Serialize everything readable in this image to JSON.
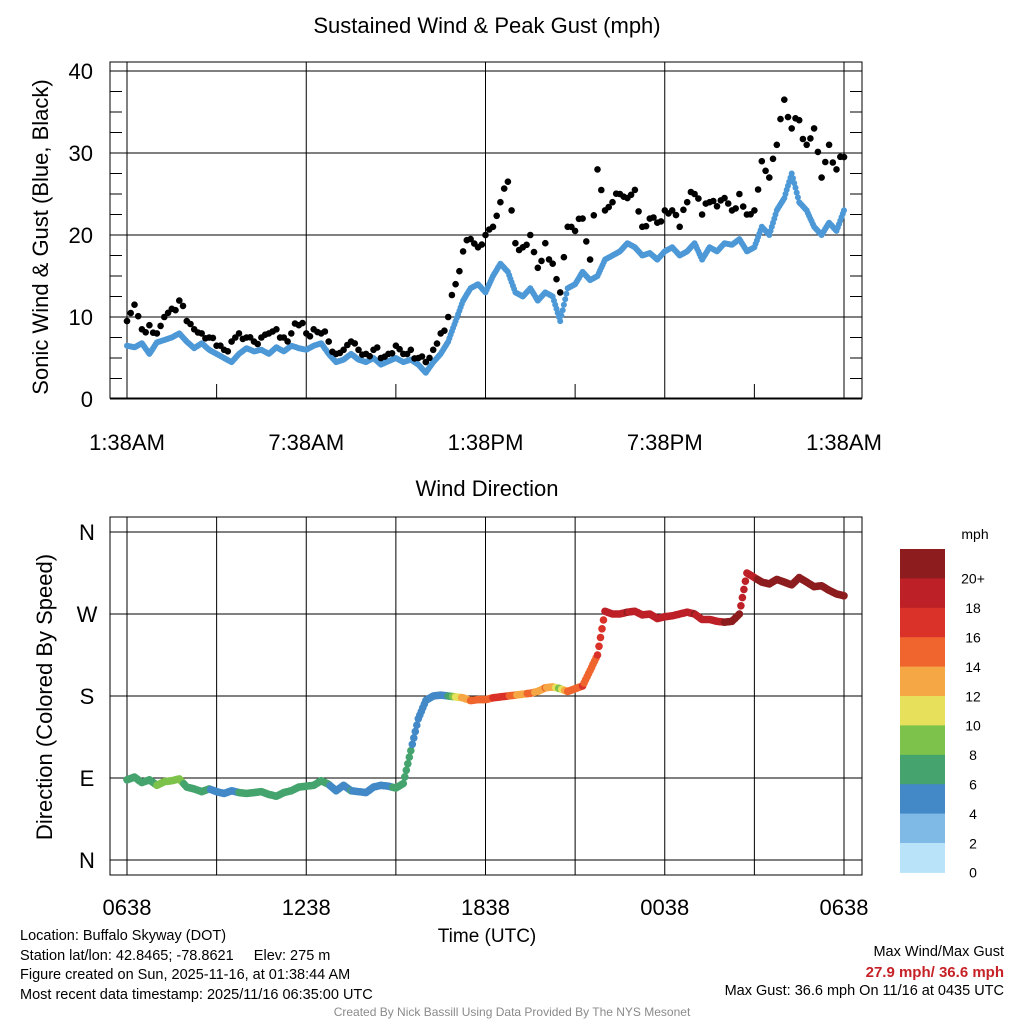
{
  "chart_data": [
    {
      "type": "scatter",
      "title": "Sustained Wind & Peak Gust (mph)",
      "ylabel": "Sonic Wind & Gust (Blue, Black)",
      "xlabel": "",
      "ylim": [
        0,
        40
      ],
      "yticks": [
        0,
        10,
        20,
        30,
        40
      ],
      "x_unit": "hours since 1:38AM",
      "xlim": [
        0,
        24
      ],
      "xtick_positions": [
        0,
        6,
        12,
        18,
        24
      ],
      "xtick_labels": [
        "1:38AM",
        "7:38AM",
        "1:38PM",
        "7:38PM",
        "1:38AM"
      ],
      "grid": true,
      "series": [
        {
          "name": "Sustained Wind",
          "color": "#4d98d6",
          "x": [
            0,
            0.25,
            0.5,
            0.75,
            1,
            1.25,
            1.5,
            1.75,
            2,
            2.25,
            2.5,
            2.75,
            3,
            3.25,
            3.5,
            3.75,
            4,
            4.25,
            4.5,
            4.75,
            5,
            5.25,
            5.5,
            5.75,
            6,
            6.25,
            6.5,
            6.75,
            7,
            7.25,
            7.5,
            7.75,
            8,
            8.25,
            8.5,
            8.75,
            9,
            9.25,
            9.5,
            9.75,
            10,
            10.25,
            10.5,
            10.75,
            11,
            11.25,
            11.5,
            11.75,
            12,
            12.25,
            12.5,
            12.75,
            13,
            13.25,
            13.5,
            13.75,
            14,
            14.25,
            14.5,
            14.75,
            15,
            15.25,
            15.5,
            15.75,
            16,
            16.25,
            16.5,
            16.75,
            17,
            17.25,
            17.5,
            17.75,
            18,
            18.25,
            18.5,
            18.75,
            19,
            19.25,
            19.5,
            19.75,
            20,
            20.25,
            20.5,
            20.75,
            21,
            21.25,
            21.5,
            21.75,
            22,
            22.25,
            22.5,
            22.75,
            23,
            23.25,
            23.5,
            23.75,
            24
          ],
          "values": [
            6.5,
            6.3,
            6.8,
            5.5,
            6.9,
            7.2,
            7.5,
            8.0,
            7.0,
            6.2,
            6.8,
            6.0,
            5.5,
            5.0,
            4.5,
            5.5,
            6.2,
            5.8,
            6.0,
            5.5,
            6.3,
            5.8,
            6.5,
            6.2,
            6.0,
            6.5,
            6.8,
            5.5,
            4.5,
            4.8,
            5.5,
            4.8,
            4.5,
            5.0,
            4.2,
            4.6,
            5.0,
            4.5,
            4.8,
            4.2,
            3.2,
            4.5,
            5.5,
            7.0,
            9.5,
            12.0,
            13.5,
            14.0,
            13.0,
            15.0,
            16.5,
            15.5,
            13.0,
            12.5,
            13.5,
            12.0,
            13.0,
            12.5,
            9.5,
            13.5,
            14.0,
            15.5,
            14.5,
            15.0,
            17.0,
            17.5,
            18.0,
            19.0,
            18.5,
            17.5,
            17.8,
            17.0,
            18.0,
            18.5,
            17.5,
            18.0,
            19.0,
            17.0,
            18.5,
            18.0,
            19.0,
            18.8,
            19.5,
            18.0,
            18.5,
            21.0,
            20.0,
            23.0,
            24.5,
            27.5,
            24.0,
            23.0,
            21.0,
            20.0,
            21.5,
            20.5,
            23.0
          ]
        },
        {
          "name": "Peak Gust",
          "color": "#000000",
          "x": [
            0,
            0.25,
            0.5,
            0.75,
            1,
            1.25,
            1.5,
            1.75,
            2,
            2.25,
            2.5,
            2.75,
            3,
            3.25,
            3.5,
            3.75,
            4,
            4.25,
            4.5,
            4.75,
            5,
            5.25,
            5.5,
            5.75,
            6,
            6.25,
            6.5,
            6.75,
            7,
            7.25,
            7.5,
            7.75,
            8,
            8.25,
            8.5,
            8.75,
            9,
            9.25,
            9.5,
            9.75,
            10,
            10.25,
            10.5,
            10.75,
            11,
            11.25,
            11.5,
            11.75,
            12,
            12.25,
            12.5,
            12.75,
            13,
            13.25,
            13.5,
            13.75,
            14,
            14.25,
            14.5,
            14.75,
            15,
            15.25,
            15.5,
            15.75,
            16,
            16.25,
            16.5,
            16.75,
            17,
            17.25,
            17.5,
            17.75,
            18,
            18.25,
            18.5,
            18.75,
            19,
            19.25,
            19.5,
            19.75,
            20,
            20.25,
            20.5,
            20.75,
            21,
            21.25,
            21.5,
            21.75,
            22,
            22.25,
            22.5,
            22.75,
            23,
            23.25,
            23.5,
            23.75,
            24
          ],
          "values": [
            9.5,
            11.5,
            8.5,
            9.0,
            8.0,
            10.0,
            11.0,
            12.0,
            9.5,
            8.5,
            8.0,
            7.5,
            6.5,
            6.0,
            7.0,
            8.0,
            7.5,
            7.0,
            7.5,
            8.0,
            8.5,
            7.5,
            8.0,
            9.0,
            8.0,
            8.5,
            8.0,
            7.0,
            5.5,
            6.0,
            7.0,
            6.0,
            5.5,
            6.0,
            5.0,
            5.5,
            6.5,
            5.5,
            6.0,
            5.0,
            4.5,
            6.0,
            8.0,
            10.0,
            14.0,
            18.0,
            19.5,
            18.5,
            20.0,
            21.0,
            24.0,
            26.5,
            19.0,
            18.5,
            20.0,
            16.0,
            19.0,
            16.5,
            13.0,
            21.0,
            20.5,
            22.0,
            17.0,
            28.0,
            23.0,
            24.0,
            25.0,
            24.5,
            25.5,
            21.0,
            22.0,
            21.5,
            23.0,
            23.0,
            21.0,
            24.0,
            25.0,
            22.5,
            24.0,
            23.5,
            24.5,
            23.0,
            25.0,
            22.5,
            23.0,
            29.0,
            27.0,
            31.0,
            36.5,
            33.0,
            34.0,
            31.0,
            33.0,
            27.0,
            31.0,
            28.0,
            29.5
          ]
        }
      ]
    },
    {
      "type": "scatter",
      "title": "Wind Direction",
      "ylabel": "Direction (Colored By Speed)",
      "xlabel": "Time (UTC)",
      "ylim": [
        0,
        360
      ],
      "ytick_values": [
        0,
        90,
        180,
        270,
        360
      ],
      "ytick_labels": [
        "N",
        "E",
        "S",
        "W",
        "N"
      ],
      "x_unit": "hours since 0638 UTC",
      "xlim": [
        0,
        24
      ],
      "xtick_positions": [
        0,
        6,
        12,
        18,
        24
      ],
      "xtick_labels": [
        "0638",
        "1238",
        "1838",
        "0038",
        "0638"
      ],
      "grid": true,
      "series": [
        {
          "name": "Direction",
          "x": [
            0,
            0.25,
            0.5,
            0.75,
            1,
            1.25,
            1.5,
            1.75,
            2,
            2.25,
            2.5,
            2.75,
            3,
            3.25,
            3.5,
            3.75,
            4,
            4.25,
            4.5,
            4.75,
            5,
            5.25,
            5.5,
            5.75,
            6,
            6.25,
            6.5,
            6.75,
            7,
            7.25,
            7.5,
            7.75,
            8,
            8.25,
            8.5,
            8.75,
            9,
            9.25,
            9.5,
            9.75,
            10,
            10.25,
            10.5,
            10.75,
            11,
            11.25,
            11.5,
            11.75,
            12,
            12.25,
            12.5,
            12.75,
            13,
            13.25,
            13.5,
            13.75,
            14,
            14.25,
            14.5,
            14.75,
            15,
            15.25,
            15.5,
            15.75,
            16,
            16.25,
            16.5,
            16.75,
            17,
            17.25,
            17.5,
            17.75,
            18,
            18.25,
            18.5,
            18.75,
            19,
            19.25,
            19.5,
            19.75,
            20,
            20.25,
            20.5,
            20.75,
            21,
            21.25,
            21.5,
            21.75,
            22,
            22.25,
            22.5,
            22.75,
            23,
            23.25,
            23.5,
            23.75,
            24
          ],
          "values": [
            88,
            91,
            85,
            88,
            82,
            86,
            87,
            89,
            80,
            78,
            75,
            78,
            75,
            73,
            76,
            74,
            73,
            74,
            75,
            72,
            70,
            74,
            76,
            80,
            81,
            82,
            87,
            83,
            76,
            82,
            76,
            75,
            74,
            80,
            82,
            81,
            79,
            84,
            120,
            155,
            175,
            180,
            181,
            180,
            179,
            178,
            175,
            176,
            176,
            178,
            179,
            180,
            181,
            182,
            183,
            185,
            189,
            190,
            188,
            185,
            188,
            191,
            208,
            225,
            273,
            270,
            270,
            272,
            273,
            269,
            270,
            265,
            267,
            268,
            270,
            272,
            270,
            264,
            264,
            262,
            261,
            262,
            270,
            315,
            310,
            305,
            303,
            308,
            305,
            302,
            310,
            305,
            300,
            301,
            296,
            292,
            290
          ],
          "speed": [
            6,
            6,
            6,
            5,
            7,
            8,
            8,
            8,
            6,
            5,
            6,
            5,
            4,
            4,
            4,
            5,
            5,
            5,
            5,
            5,
            6,
            5,
            6,
            6,
            6,
            6,
            5,
            5,
            4,
            4,
            5,
            4,
            4,
            4,
            4,
            4,
            6,
            5,
            5,
            4,
            3,
            3,
            4,
            5,
            9,
            12,
            13,
            14,
            13,
            15,
            16,
            15,
            13,
            12,
            14,
            12,
            13,
            12,
            8,
            13,
            14,
            15,
            14,
            15,
            17,
            17,
            18,
            19,
            18,
            17,
            18,
            17,
            18,
            18,
            17,
            18,
            19,
            17,
            18,
            18,
            19,
            19,
            19,
            18,
            18,
            21,
            20,
            23,
            24,
            27,
            24,
            23,
            21,
            20,
            21,
            20,
            23
          ]
        }
      ],
      "colorbar": {
        "title": "mph",
        "labels": [
          "20+",
          "18",
          "16",
          "14",
          "12",
          "10",
          "8",
          "6",
          "4",
          "2",
          "0"
        ],
        "colors": [
          "#8c1c1e",
          "#bd2027",
          "#da3128",
          "#ef652d",
          "#f6a745",
          "#e6e05a",
          "#7dc24a",
          "#45a46d",
          "#4389c7",
          "#7fbae6",
          "#b8e3f8"
        ]
      }
    }
  ],
  "info": {
    "location": "Location: Buffalo Skyway (DOT)",
    "latlon": "Station lat/lon: 42.8465; -78.8621",
    "elev": "Elev: 275 m",
    "created": "Figure created on Sun, 2025-11-16, at 01:38:44 AM",
    "recent": "Most recent data timestamp: 2025/11/16 06:35:00 UTC",
    "max_label": "Max Wind/Max Gust",
    "max_values": "27.9 mph/ 36.6 mph",
    "max_gust": "Max Gust: 36.6 mph On 11/16 at 0435 UTC",
    "credit": "Created By Nick Bassill Using Data Provided By The NYS Mesonet"
  }
}
